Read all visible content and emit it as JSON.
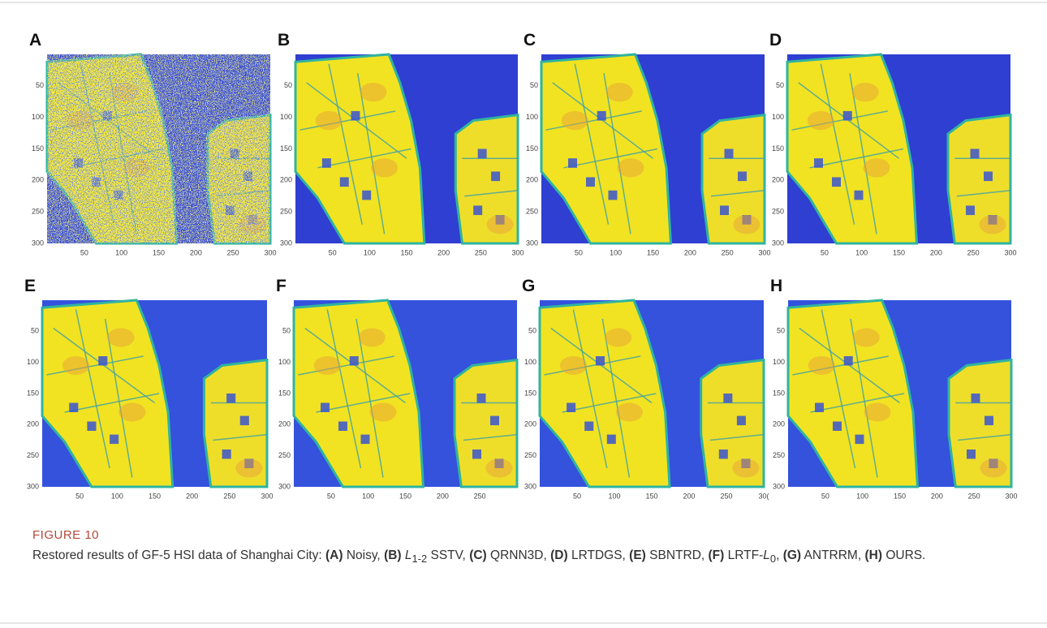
{
  "panels": [
    {
      "letter": "A",
      "noisy": true,
      "xticks": [
        "50",
        "100",
        "150",
        "200",
        "250",
        "300"
      ],
      "yticks": [
        "50",
        "100",
        "150",
        "200",
        "250",
        "300"
      ]
    },
    {
      "letter": "B",
      "xticks": [
        "50",
        "100",
        "150",
        "200",
        "250",
        "300"
      ],
      "yticks": [
        "50",
        "100",
        "150",
        "200",
        "250",
        "300"
      ]
    },
    {
      "letter": "C",
      "xticks": [
        "50",
        "100",
        "150",
        "200",
        "250",
        "300"
      ],
      "yticks": [
        "50",
        "100",
        "150",
        "200",
        "250",
        "300"
      ]
    },
    {
      "letter": "D",
      "xticks": [
        "50",
        "100",
        "150",
        "200",
        "250",
        "300"
      ],
      "yticks": [
        "50",
        "100",
        "150",
        "200",
        "250",
        "300"
      ]
    },
    {
      "letter": "E",
      "xticks": [
        "50",
        "100",
        "150",
        "200",
        "250",
        "300"
      ],
      "yticks": [
        "50",
        "100",
        "150",
        "200",
        "250",
        "300"
      ]
    },
    {
      "letter": "F",
      "xticks": [
        "50",
        "100",
        "150",
        "200",
        "250"
      ],
      "yticks": [
        "50",
        "100",
        "150",
        "200",
        "250",
        "300"
      ]
    },
    {
      "letter": "G",
      "xticks": [
        "50",
        "100",
        "150",
        "200",
        "250",
        "30("
      ],
      "yticks": [
        "50",
        "100",
        "150",
        "200",
        "250",
        "300"
      ]
    },
    {
      "letter": "H",
      "xticks": [
        "50",
        "100",
        "150",
        "200",
        "250",
        "300"
      ],
      "yticks": [
        "50",
        "100",
        "150",
        "200",
        "250",
        "300"
      ]
    }
  ],
  "caption": {
    "label": "FIGURE 10",
    "intro": "Restored results of GF-5 HSI data of Shanghai City:",
    "items": [
      {
        "label": "(A)",
        "text": "Noisy,"
      },
      {
        "label": "(B)",
        "symbol": "L",
        "subscript": "1-2",
        "text": "SSTV,"
      },
      {
        "label": "(C)",
        "text": "QRNN3D,"
      },
      {
        "label": "(D)",
        "text": "LRTDGS,"
      },
      {
        "label": "(E)",
        "text": "SBNTRD,"
      },
      {
        "label": "(F)",
        "prefix": "LRTF-",
        "symbol": "L",
        "subscript": "0",
        "text": ","
      },
      {
        "label": "(G)",
        "text": "ANTRRM,"
      },
      {
        "label": "(H)",
        "text": "OURS."
      }
    ]
  }
}
